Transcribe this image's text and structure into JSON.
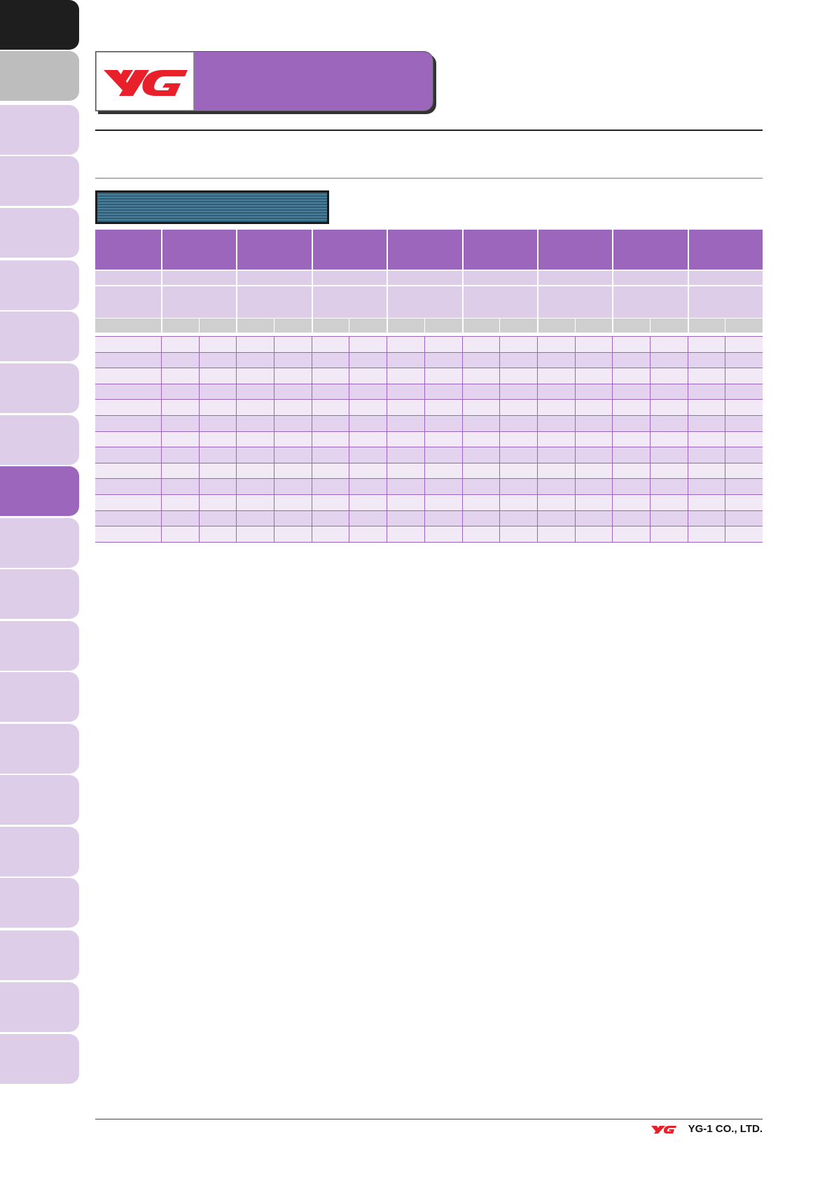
{
  "footer": {
    "company": "YG-1 CO., LTD."
  }
}
